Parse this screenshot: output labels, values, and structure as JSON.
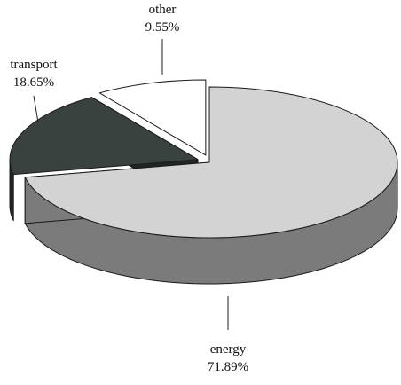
{
  "chart_data": {
    "type": "pie",
    "style": "3d-exploded",
    "slices": [
      {
        "label": "energy",
        "value": 71.89,
        "value_label": "71.89%",
        "top_color": "#d3d3d3",
        "side_color": "#7b7b7b",
        "exploded": false
      },
      {
        "label": "transport",
        "value": 18.65,
        "value_label": "18.65%",
        "top_color": "#3a4240",
        "side_color": "#1f2625",
        "exploded": true
      },
      {
        "label": "other",
        "value": 9.55,
        "value_label": "9.55%",
        "top_color": "#ffffff",
        "side_color": "#e2e2e2",
        "exploded": true
      }
    ],
    "start_angle_deg": 0,
    "direction": "clockwise",
    "outline_color": "#1a1a1a",
    "legend": "none"
  }
}
